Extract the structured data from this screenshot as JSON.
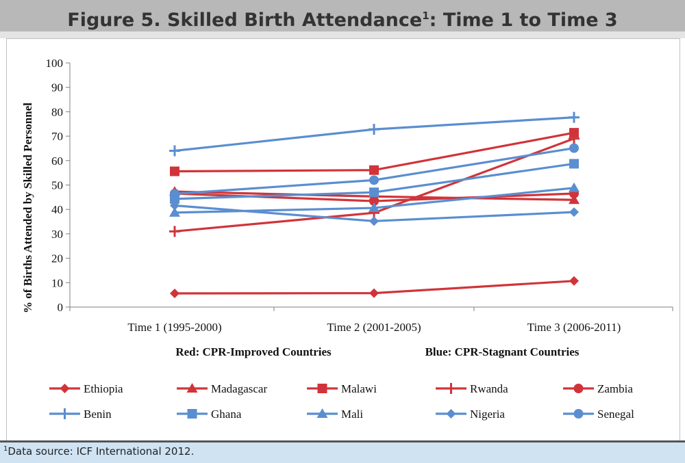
{
  "header": {
    "title_main": "Figure 5. Skilled Birth Attendance",
    "title_sup": "1",
    "title_tail": ": Time 1 to Time 3"
  },
  "footnote": {
    "sup": "1",
    "text": "Data source: ICF International 2012."
  },
  "colors": {
    "red": "#d0343a",
    "blue": "#5a8ed0",
    "title_bar": "#b8b8b8",
    "footnote_bar": "#cfe3f3"
  },
  "chart_data": {
    "type": "line",
    "ylabel": "% of Births Attended by Skilled Personnel",
    "ylim": [
      0,
      100
    ],
    "yticks": [
      "0",
      "10",
      "20",
      "30",
      "40",
      "50",
      "60",
      "70",
      "80",
      "90",
      "100"
    ],
    "categories": [
      "Time 1 (1995-2000)",
      "Time 2 (2001-2005)",
      "Time 3 (2006-2011)"
    ],
    "group_labels": [
      "Red: CPR-Improved Countries",
      "Blue: CPR-Stagnant Countries"
    ],
    "grid": false,
    "legend_position": "bottom",
    "series": [
      {
        "name": "Ethiopia",
        "group": "red",
        "marker": "diamond",
        "values": [
          5.6,
          5.7,
          10.7
        ]
      },
      {
        "name": "Madagascar",
        "group": "red",
        "marker": "triangle",
        "values": [
          47.3,
          45.3,
          43.9
        ]
      },
      {
        "name": "Malawi",
        "group": "red",
        "marker": "square",
        "values": [
          55.6,
          56.1,
          71.4
        ]
      },
      {
        "name": "Rwanda",
        "group": "red",
        "marker": "plus",
        "values": [
          31.0,
          38.6,
          69.0
        ]
      },
      {
        "name": "Zambia",
        "group": "red",
        "marker": "circle",
        "values": [
          46.5,
          43.4,
          46.5
        ]
      },
      {
        "name": "Benin",
        "group": "blue",
        "marker": "plus",
        "values": [
          64.0,
          72.8,
          77.7
        ]
      },
      {
        "name": "Ghana",
        "group": "blue",
        "marker": "square",
        "values": [
          44.3,
          47.0,
          58.7
        ]
      },
      {
        "name": "Mali",
        "group": "blue",
        "marker": "triangle",
        "values": [
          38.7,
          40.6,
          48.8
        ]
      },
      {
        "name": "Nigeria",
        "group": "blue",
        "marker": "diamond",
        "values": [
          41.6,
          35.2,
          38.9
        ]
      },
      {
        "name": "Senegal",
        "group": "blue",
        "marker": "circle",
        "values": [
          46.4,
          52.0,
          65.1
        ]
      }
    ]
  }
}
